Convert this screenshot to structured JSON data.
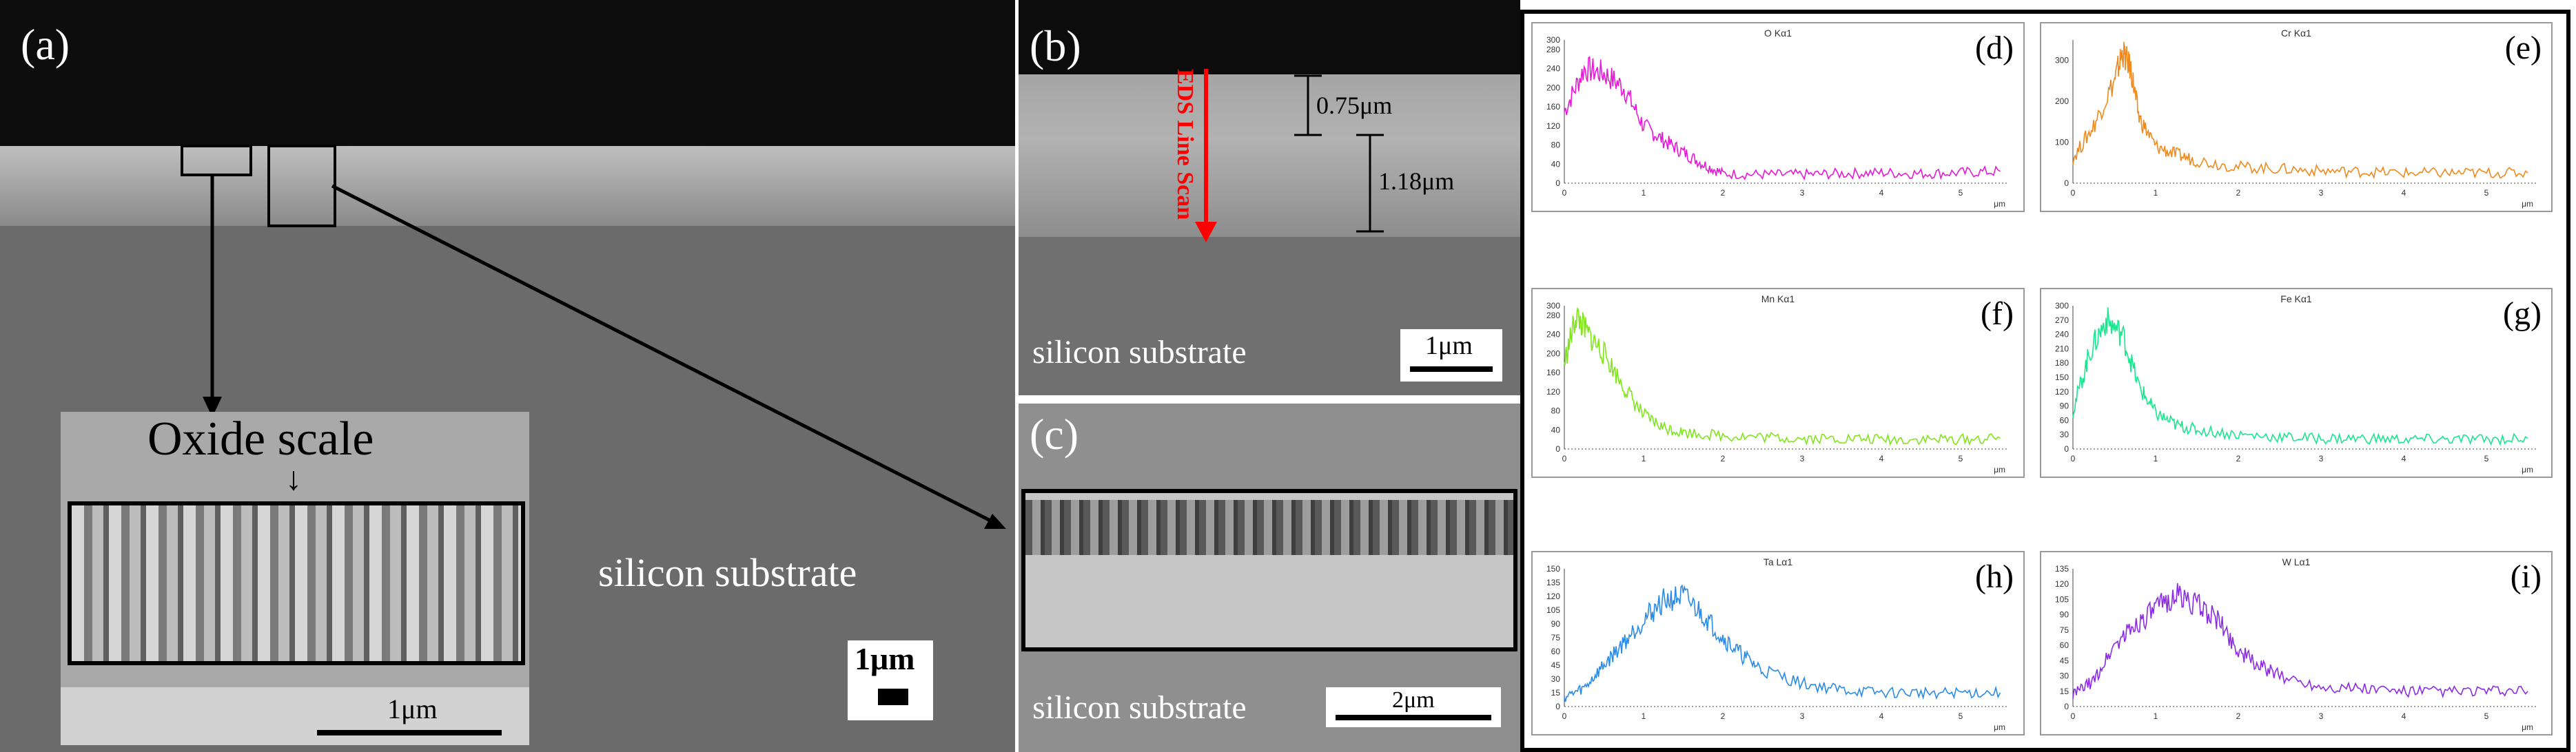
{
  "panel_a": {
    "label": "(a)",
    "substrate": "silicon substrate",
    "inset_title": "Oxide scale",
    "inset_scale": "1μm",
    "scale": "1μm"
  },
  "panel_b": {
    "label": "(b)",
    "thickness_top": "0.75μm",
    "thickness_bottom": "1.18μm",
    "line_scan": "EDS Line Scan",
    "substrate": "silicon substrate",
    "scale": "1μm"
  },
  "panel_c": {
    "label": "(c)",
    "substrate": "silicon substrate",
    "scale": "2μm"
  },
  "chart_data": [
    {
      "type": "line",
      "label": "(d)",
      "title": "O Kα1",
      "color": "#e619d6",
      "yticks": [
        0,
        40,
        80,
        120,
        160,
        200,
        240,
        280,
        300
      ],
      "ylim": [
        0,
        300
      ],
      "xticks": [
        0,
        1,
        2,
        3,
        4,
        5
      ],
      "xlim": [
        0,
        5.6
      ],
      "xunit": "μm",
      "x": [
        0,
        0.25,
        0.5,
        0.75,
        1.0,
        1.25,
        1.5,
        1.75,
        2.0,
        2.5,
        3.0,
        3.5,
        4.0,
        4.5,
        5.0,
        5.5
      ],
      "y": [
        150,
        240,
        230,
        200,
        120,
        90,
        65,
        40,
        20,
        18,
        18,
        20,
        22,
        20,
        22,
        25
      ]
    },
    {
      "type": "line",
      "label": "(e)",
      "title": "Cr Kα1",
      "color": "#f08a1c",
      "yticks": [
        0,
        100,
        200,
        300
      ],
      "ylim": [
        0,
        350
      ],
      "xticks": [
        0,
        1,
        2,
        3,
        4,
        5
      ],
      "xlim": [
        0,
        5.6
      ],
      "xunit": "μm",
      "x": [
        0,
        0.25,
        0.5,
        0.6,
        0.7,
        0.8,
        1.0,
        1.25,
        1.5,
        2.0,
        2.5,
        3.0,
        3.5,
        4.0,
        4.5,
        5.0,
        5.5
      ],
      "y": [
        60,
        140,
        250,
        320,
        280,
        160,
        90,
        70,
        55,
        40,
        35,
        30,
        28,
        25,
        25,
        25,
        25
      ]
    },
    {
      "type": "line",
      "label": "(f)",
      "title": "Mn Kα1",
      "color": "#7fe619",
      "yticks": [
        0,
        40,
        80,
        120,
        160,
        200,
        240,
        280,
        300
      ],
      "ylim": [
        0,
        300
      ],
      "xticks": [
        0,
        1,
        2,
        3,
        4,
        5
      ],
      "xlim": [
        0,
        5.6
      ],
      "xunit": "μm",
      "x": [
        0,
        0.15,
        0.3,
        0.5,
        0.75,
        1.0,
        1.25,
        1.5,
        2.0,
        2.5,
        3.0,
        3.5,
        4.0,
        4.5,
        5.0,
        5.5
      ],
      "y": [
        180,
        280,
        240,
        200,
        130,
        70,
        45,
        35,
        28,
        25,
        22,
        22,
        20,
        20,
        20,
        22
      ]
    },
    {
      "type": "line",
      "label": "(g)",
      "title": "Fe Kα1",
      "color": "#19e68f",
      "yticks": [
        0,
        30,
        60,
        90,
        120,
        150,
        180,
        210,
        240,
        270,
        300
      ],
      "ylim": [
        0,
        300
      ],
      "xticks": [
        0,
        1,
        2,
        3,
        4,
        5
      ],
      "xlim": [
        0,
        5.6
      ],
      "xunit": "μm",
      "x": [
        0,
        0.2,
        0.4,
        0.6,
        0.8,
        1.0,
        1.25,
        1.5,
        2.0,
        2.5,
        3.0,
        3.5,
        4.0,
        4.5,
        5.0,
        5.5
      ],
      "y": [
        80,
        200,
        270,
        240,
        130,
        75,
        50,
        40,
        30,
        25,
        22,
        22,
        20,
        20,
        20,
        22
      ]
    },
    {
      "type": "line",
      "label": "(h)",
      "title": "Ta Lα1",
      "color": "#2a8be6",
      "yticks": [
        0,
        15,
        30,
        45,
        60,
        75,
        90,
        105,
        120,
        135,
        150
      ],
      "ylim": [
        0,
        150
      ],
      "xticks": [
        0,
        1,
        2,
        3,
        4,
        5
      ],
      "xlim": [
        0,
        5.6
      ],
      "xunit": "μm",
      "x": [
        0,
        0.25,
        0.5,
        0.75,
        1.0,
        1.25,
        1.5,
        1.75,
        2.0,
        2.25,
        2.5,
        3.0,
        3.5,
        4.0,
        4.5,
        5.0,
        5.5
      ],
      "y": [
        10,
        20,
        45,
        70,
        95,
        115,
        120,
        100,
        75,
        55,
        40,
        25,
        18,
        15,
        15,
        15,
        15
      ]
    },
    {
      "type": "line",
      "label": "(i)",
      "title": "W Lα1",
      "color": "#8b2be6",
      "yticks": [
        0,
        15,
        30,
        45,
        60,
        75,
        90,
        105,
        120,
        135
      ],
      "ylim": [
        0,
        135
      ],
      "xticks": [
        0,
        1,
        2,
        3,
        4,
        5
      ],
      "xlim": [
        0,
        5.6
      ],
      "xunit": "μm",
      "x": [
        0,
        0.25,
        0.5,
        0.75,
        1.0,
        1.25,
        1.5,
        1.75,
        2.0,
        2.25,
        2.5,
        3.0,
        3.5,
        4.0,
        4.5,
        5.0,
        5.5
      ],
      "y": [
        12,
        25,
        60,
        80,
        95,
        110,
        100,
        85,
        55,
        40,
        30,
        20,
        18,
        15,
        15,
        15,
        15
      ]
    }
  ]
}
